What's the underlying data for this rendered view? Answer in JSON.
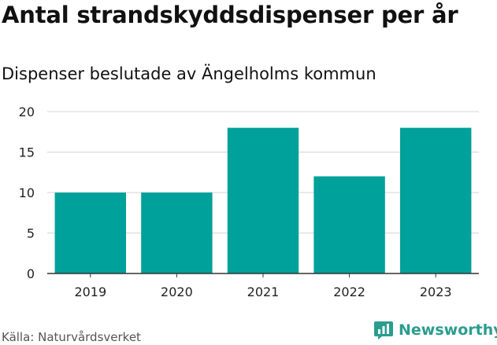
{
  "header": {
    "title": "Antal strandskyddsdispenser per år",
    "subtitle": "Dispenser beslutade av Ängelholms kommun"
  },
  "footer": {
    "source": "Källa: Naturvårdsverket",
    "brand": "Newsworthy"
  },
  "colors": {
    "bar": "#00a19a",
    "grid": "#d4d4d4",
    "axis": "#333333",
    "brand": "#2a9d8f"
  },
  "chart_data": {
    "type": "bar",
    "title": "Antal strandskyddsdispenser per år",
    "subtitle": "Dispenser beslutade av Ängelholms kommun",
    "xlabel": "",
    "ylabel": "",
    "categories": [
      "2019",
      "2020",
      "2021",
      "2022",
      "2023"
    ],
    "values": [
      10,
      10,
      18,
      12,
      18
    ],
    "ylim": [
      0,
      20
    ],
    "yticks": [
      0,
      5,
      10,
      15,
      20
    ],
    "grid": true
  }
}
